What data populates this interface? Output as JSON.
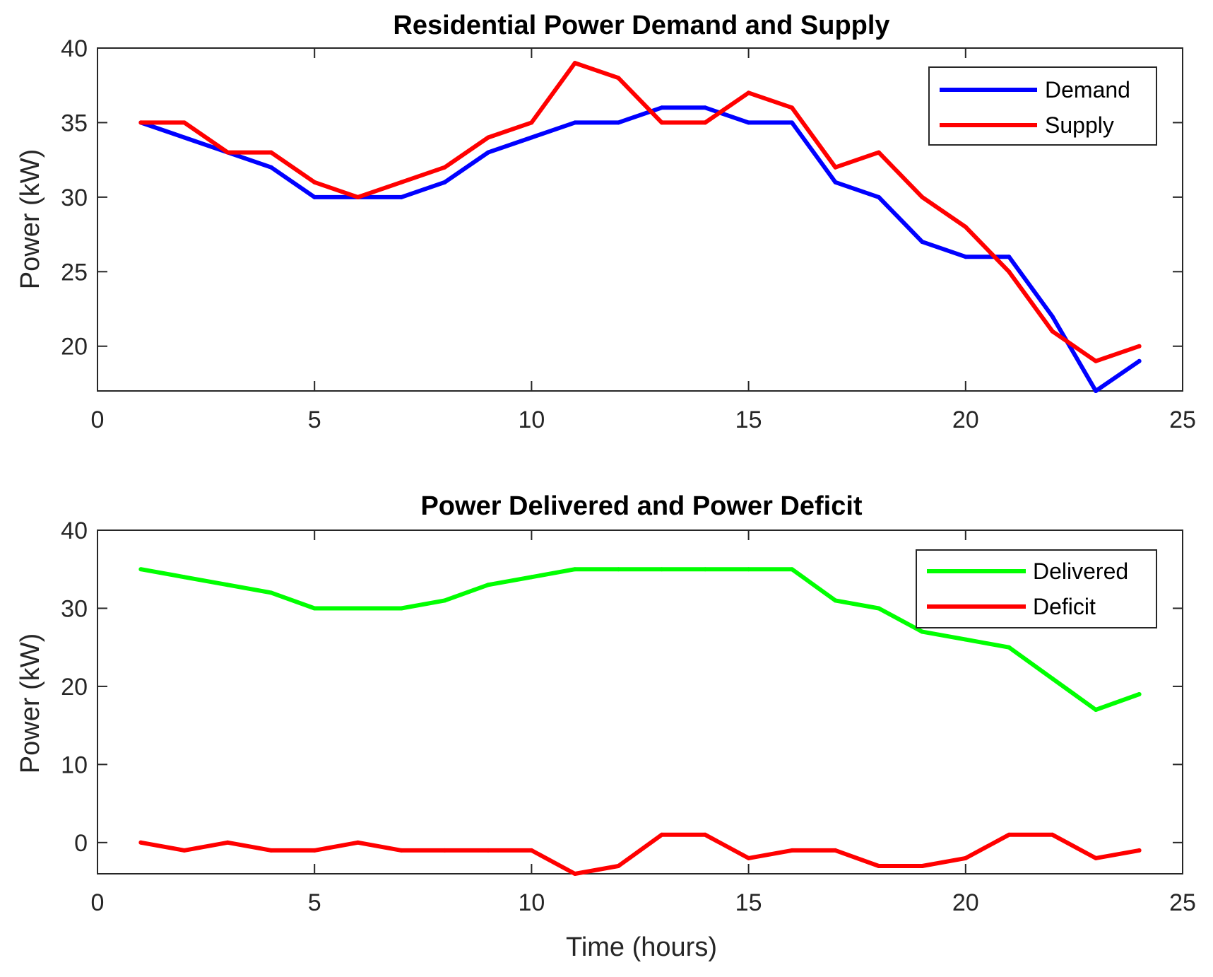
{
  "chart_data": [
    {
      "id": "top",
      "type": "line",
      "title": "Residential Power Demand and Supply",
      "xlabel": "",
      "ylabel": "Power (kW)",
      "xlim": [
        0,
        25
      ],
      "ylim": [
        17,
        40
      ],
      "xticks": [
        0,
        5,
        10,
        15,
        20,
        25
      ],
      "yticks": [
        20,
        25,
        30,
        35,
        40
      ],
      "legend_position": "top-right",
      "x": [
        1,
        2,
        3,
        4,
        5,
        6,
        7,
        8,
        9,
        10,
        11,
        12,
        13,
        14,
        15,
        16,
        17,
        18,
        19,
        20,
        21,
        22,
        23,
        24
      ],
      "series": [
        {
          "name": "Demand",
          "color": "#0000ff",
          "values": [
            35,
            34,
            33,
            32,
            30,
            30,
            30,
            31,
            33,
            34,
            35,
            35,
            36,
            36,
            35,
            35,
            31,
            30,
            27,
            26,
            26,
            22,
            17,
            19
          ]
        },
        {
          "name": "Supply",
          "color": "#ff0000",
          "values": [
            35,
            35,
            33,
            33,
            31,
            30,
            31,
            32,
            34,
            35,
            39,
            38,
            35,
            35,
            37,
            36,
            32,
            33,
            30,
            28,
            25,
            21,
            19,
            20
          ]
        }
      ]
    },
    {
      "id": "bottom",
      "type": "line",
      "title": "Power Delivered and Power Deficit",
      "xlabel": "Time (hours)",
      "ylabel": "Power (kW)",
      "xlim": [
        0,
        25
      ],
      "ylim": [
        -4,
        40
      ],
      "xticks": [
        0,
        5,
        10,
        15,
        20,
        25
      ],
      "yticks": [
        0,
        10,
        20,
        30,
        40
      ],
      "legend_position": "top-right",
      "x": [
        1,
        2,
        3,
        4,
        5,
        6,
        7,
        8,
        9,
        10,
        11,
        12,
        13,
        14,
        15,
        16,
        17,
        18,
        19,
        20,
        21,
        22,
        23,
        24
      ],
      "series": [
        {
          "name": "Delivered",
          "color": "#00ff00",
          "values": [
            35,
            34,
            33,
            32,
            30,
            30,
            30,
            31,
            33,
            34,
            35,
            35,
            35,
            35,
            35,
            35,
            31,
            30,
            27,
            26,
            25,
            21,
            17,
            19
          ]
        },
        {
          "name": "Deficit",
          "color": "#ff0000",
          "values": [
            0,
            -1,
            0,
            -1,
            -1,
            0,
            -1,
            -1,
            -1,
            -1,
            -4,
            -3,
            1,
            1,
            -2,
            -1,
            -1,
            -3,
            -3,
            -2,
            1,
            1,
            -2,
            -1
          ]
        }
      ]
    }
  ]
}
